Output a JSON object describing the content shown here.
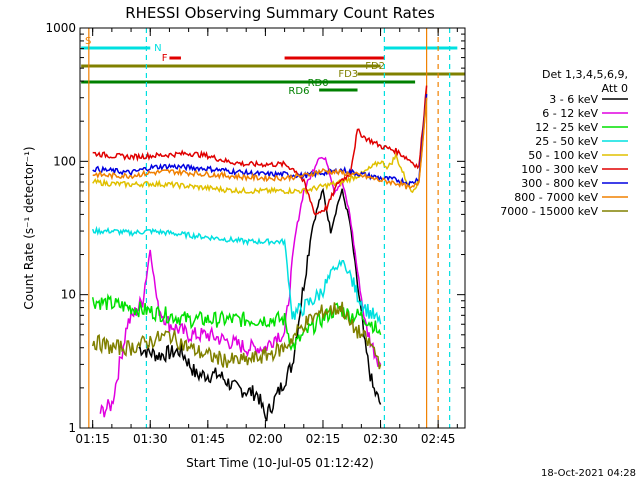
{
  "chart_data": {
    "type": "line",
    "title": "RHESSI Observing Summary Count Rates",
    "xlabel": "Start Time (10-Jul-05 01:12:42)",
    "ylabel": "Count Rate (s⁻¹ detector⁻¹)",
    "y_scale": "log",
    "ylim": [
      1,
      1000
    ],
    "xlim": [
      "01:12",
      "02:52"
    ],
    "x_ticks": [
      "01:15",
      "01:30",
      "01:45",
      "02:00",
      "02:15",
      "02:30",
      "02:45"
    ],
    "y_ticks": [
      "1",
      "10",
      "100",
      "1000"
    ],
    "legend_header": [
      "Det 1,3,4,5,6,9,",
      "Att 0"
    ],
    "legend_position": "right",
    "series": [
      {
        "name": "3 - 6 keV",
        "color": "#000000",
        "points": [
          [
            "01:27",
            4
          ],
          [
            "01:32",
            3.5
          ],
          [
            "01:38",
            3.8
          ],
          [
            "01:42",
            2.5
          ],
          [
            "01:48",
            2.5
          ],
          [
            "01:52",
            2
          ],
          [
            "01:58",
            1.8
          ],
          [
            "02:00",
            1.2
          ],
          [
            "02:04",
            2
          ],
          [
            "02:07",
            3
          ],
          [
            "02:10",
            12
          ],
          [
            "02:12",
            30
          ],
          [
            "02:14",
            50
          ],
          [
            "02:15",
            60
          ],
          [
            "02:17",
            30
          ],
          [
            "02:19",
            50
          ],
          [
            "02:20",
            60
          ],
          [
            "02:22",
            35
          ],
          [
            "02:24",
            12
          ],
          [
            "02:26",
            4
          ],
          [
            "02:28",
            2
          ],
          [
            "02:30",
            1.5
          ]
        ]
      },
      {
        "name": "6 - 12 keV",
        "color": "#e000e0",
        "points": [
          [
            "01:17",
            1.3
          ],
          [
            "01:20",
            1.5
          ],
          [
            "01:24",
            6
          ],
          [
            "01:28",
            9
          ],
          [
            "01:30",
            22
          ],
          [
            "01:32",
            8
          ],
          [
            "01:35",
            6
          ],
          [
            "01:40",
            5
          ],
          [
            "01:45",
            5
          ],
          [
            "01:50",
            4.5
          ],
          [
            "01:55",
            4
          ],
          [
            "02:00",
            4
          ],
          [
            "02:03",
            5
          ],
          [
            "02:05",
            5
          ],
          [
            "02:08",
            30
          ],
          [
            "02:10",
            60
          ],
          [
            "02:12",
            80
          ],
          [
            "02:14",
            110
          ],
          [
            "02:16",
            100
          ],
          [
            "02:18",
            60
          ],
          [
            "02:20",
            70
          ],
          [
            "02:22",
            40
          ],
          [
            "02:24",
            15
          ],
          [
            "02:26",
            6
          ],
          [
            "02:28",
            4
          ],
          [
            "02:30",
            3
          ]
        ]
      },
      {
        "name": "12 - 25 keV",
        "color": "#00e000",
        "points": [
          [
            "01:15",
            9
          ],
          [
            "01:20",
            8.5
          ],
          [
            "01:25",
            8
          ],
          [
            "01:30",
            7.5
          ],
          [
            "01:35",
            7
          ],
          [
            "01:40",
            6.5
          ],
          [
            "01:45",
            6.5
          ],
          [
            "01:50",
            6.5
          ],
          [
            "01:55",
            6.5
          ],
          [
            "02:00",
            6.5
          ],
          [
            "02:05",
            6.5
          ],
          [
            "02:07",
            4
          ],
          [
            "02:10",
            5
          ],
          [
            "02:13",
            6
          ],
          [
            "02:16",
            7
          ],
          [
            "02:19",
            8
          ],
          [
            "02:22",
            7
          ],
          [
            "02:25",
            7
          ],
          [
            "02:28",
            6
          ],
          [
            "02:30",
            5
          ]
        ]
      },
      {
        "name": "25 - 50 keV",
        "color": "#00e0e0",
        "points": [
          [
            "01:15",
            30
          ],
          [
            "01:20",
            30
          ],
          [
            "01:25",
            29
          ],
          [
            "01:30",
            30
          ],
          [
            "01:35",
            29
          ],
          [
            "01:40",
            28
          ],
          [
            "01:45",
            27
          ],
          [
            "01:50",
            26
          ],
          [
            "01:55",
            25
          ],
          [
            "02:00",
            25
          ],
          [
            "02:05",
            25
          ],
          [
            "02:07",
            7
          ],
          [
            "02:10",
            8
          ],
          [
            "02:14",
            10
          ],
          [
            "02:18",
            15
          ],
          [
            "02:20",
            18
          ],
          [
            "02:22",
            14
          ],
          [
            "02:24",
            10
          ],
          [
            "02:26",
            8
          ],
          [
            "02:28",
            7
          ],
          [
            "02:30",
            6
          ]
        ]
      },
      {
        "name": "50 - 100 keV",
        "color": "#e0c000",
        "points": [
          [
            "01:15",
            70
          ],
          [
            "01:20",
            68
          ],
          [
            "01:25",
            67
          ],
          [
            "01:30",
            68
          ],
          [
            "01:35",
            67
          ],
          [
            "01:40",
            65
          ],
          [
            "01:45",
            63
          ],
          [
            "01:50",
            61
          ],
          [
            "01:55",
            60
          ],
          [
            "02:00",
            60
          ],
          [
            "02:05",
            60
          ],
          [
            "02:10",
            60
          ],
          [
            "02:15",
            65
          ],
          [
            "02:20",
            70
          ],
          [
            "02:25",
            80
          ],
          [
            "02:30",
            100
          ],
          [
            "02:32",
            90
          ],
          [
            "02:34",
            110
          ],
          [
            "02:36",
            80
          ],
          [
            "02:38",
            60
          ],
          [
            "02:40",
            70
          ],
          [
            "02:42",
            300
          ]
        ]
      },
      {
        "name": "100 - 300 keV",
        "color": "#e00000",
        "points": [
          [
            "01:15",
            115
          ],
          [
            "01:20",
            110
          ],
          [
            "01:25",
            108
          ],
          [
            "01:30",
            110
          ],
          [
            "01:35",
            112
          ],
          [
            "01:40",
            115
          ],
          [
            "01:45",
            110
          ],
          [
            "01:50",
            100
          ],
          [
            "01:55",
            95
          ],
          [
            "02:00",
            95
          ],
          [
            "02:05",
            95
          ],
          [
            "02:08",
            85
          ],
          [
            "02:10",
            70
          ],
          [
            "02:13",
            40
          ],
          [
            "02:16",
            45
          ],
          [
            "02:19",
            70
          ],
          [
            "02:22",
            80
          ],
          [
            "02:24",
            170
          ],
          [
            "02:26",
            150
          ],
          [
            "02:28",
            140
          ],
          [
            "02:30",
            130
          ],
          [
            "02:32",
            125
          ],
          [
            "02:34",
            120
          ],
          [
            "02:36",
            110
          ],
          [
            "02:38",
            100
          ],
          [
            "02:40",
            90
          ],
          [
            "02:42",
            370
          ]
        ]
      },
      {
        "name": "300 - 800 keV",
        "color": "#0000e0",
        "points": [
          [
            "01:15",
            88
          ],
          [
            "01:20",
            85
          ],
          [
            "01:25",
            82
          ],
          [
            "01:30",
            90
          ],
          [
            "01:35",
            92
          ],
          [
            "01:40",
            90
          ],
          [
            "01:45",
            88
          ],
          [
            "01:50",
            85
          ],
          [
            "01:55",
            82
          ],
          [
            "02:00",
            80
          ],
          [
            "02:05",
            80
          ],
          [
            "02:10",
            78
          ],
          [
            "02:15",
            82
          ],
          [
            "02:20",
            86
          ],
          [
            "02:25",
            80
          ],
          [
            "02:30",
            75
          ],
          [
            "02:35",
            72
          ],
          [
            "02:38",
            68
          ],
          [
            "02:40",
            75
          ],
          [
            "02:42",
            320
          ]
        ]
      },
      {
        "name": "800 - 7000 keV",
        "color": "#f08000",
        "points": [
          [
            "01:15",
            80
          ],
          [
            "01:20",
            78
          ],
          [
            "01:25",
            78
          ],
          [
            "01:30",
            82
          ],
          [
            "01:35",
            84
          ],
          [
            "01:40",
            82
          ],
          [
            "01:45",
            80
          ],
          [
            "01:50",
            78
          ],
          [
            "01:55",
            76
          ],
          [
            "02:00",
            75
          ],
          [
            "02:05",
            75
          ],
          [
            "02:10",
            78
          ],
          [
            "02:15",
            85
          ],
          [
            "02:20",
            82
          ],
          [
            "02:25",
            78
          ],
          [
            "02:30",
            72
          ],
          [
            "02:35",
            68
          ],
          [
            "02:38",
            62
          ],
          [
            "02:40",
            70
          ],
          [
            "02:42",
            300
          ]
        ]
      },
      {
        "name": "7000 - 15000 keV",
        "color": "#808000",
        "points": [
          [
            "01:15",
            4.5
          ],
          [
            "01:20",
            4
          ],
          [
            "01:25",
            4
          ],
          [
            "01:30",
            4.5
          ],
          [
            "01:35",
            5
          ],
          [
            "01:40",
            4
          ],
          [
            "01:45",
            3.5
          ],
          [
            "01:50",
            3.2
          ],
          [
            "01:55",
            3.2
          ],
          [
            "02:00",
            3.5
          ],
          [
            "02:05",
            4
          ],
          [
            "02:10",
            6
          ],
          [
            "02:15",
            7.5
          ],
          [
            "02:20",
            8
          ],
          [
            "02:22",
            6
          ],
          [
            "02:25",
            5
          ],
          [
            "02:28",
            4
          ],
          [
            "02:30",
            3
          ]
        ]
      }
    ],
    "annotations": {
      "flags": [
        {
          "label": "S",
          "color": "#f08000"
        },
        {
          "label": "N",
          "color": "#00e0e0"
        },
        {
          "label": "F",
          "color": "#e00000"
        },
        {
          "label": "FD2",
          "color": "#808000"
        },
        {
          "label": "FD3",
          "color": "#808000"
        },
        {
          "label": "RD0",
          "color": "#008000"
        },
        {
          "label": "RD6",
          "color": "#008000"
        }
      ]
    }
  },
  "footer_date": "18-Oct-2021 04:28"
}
